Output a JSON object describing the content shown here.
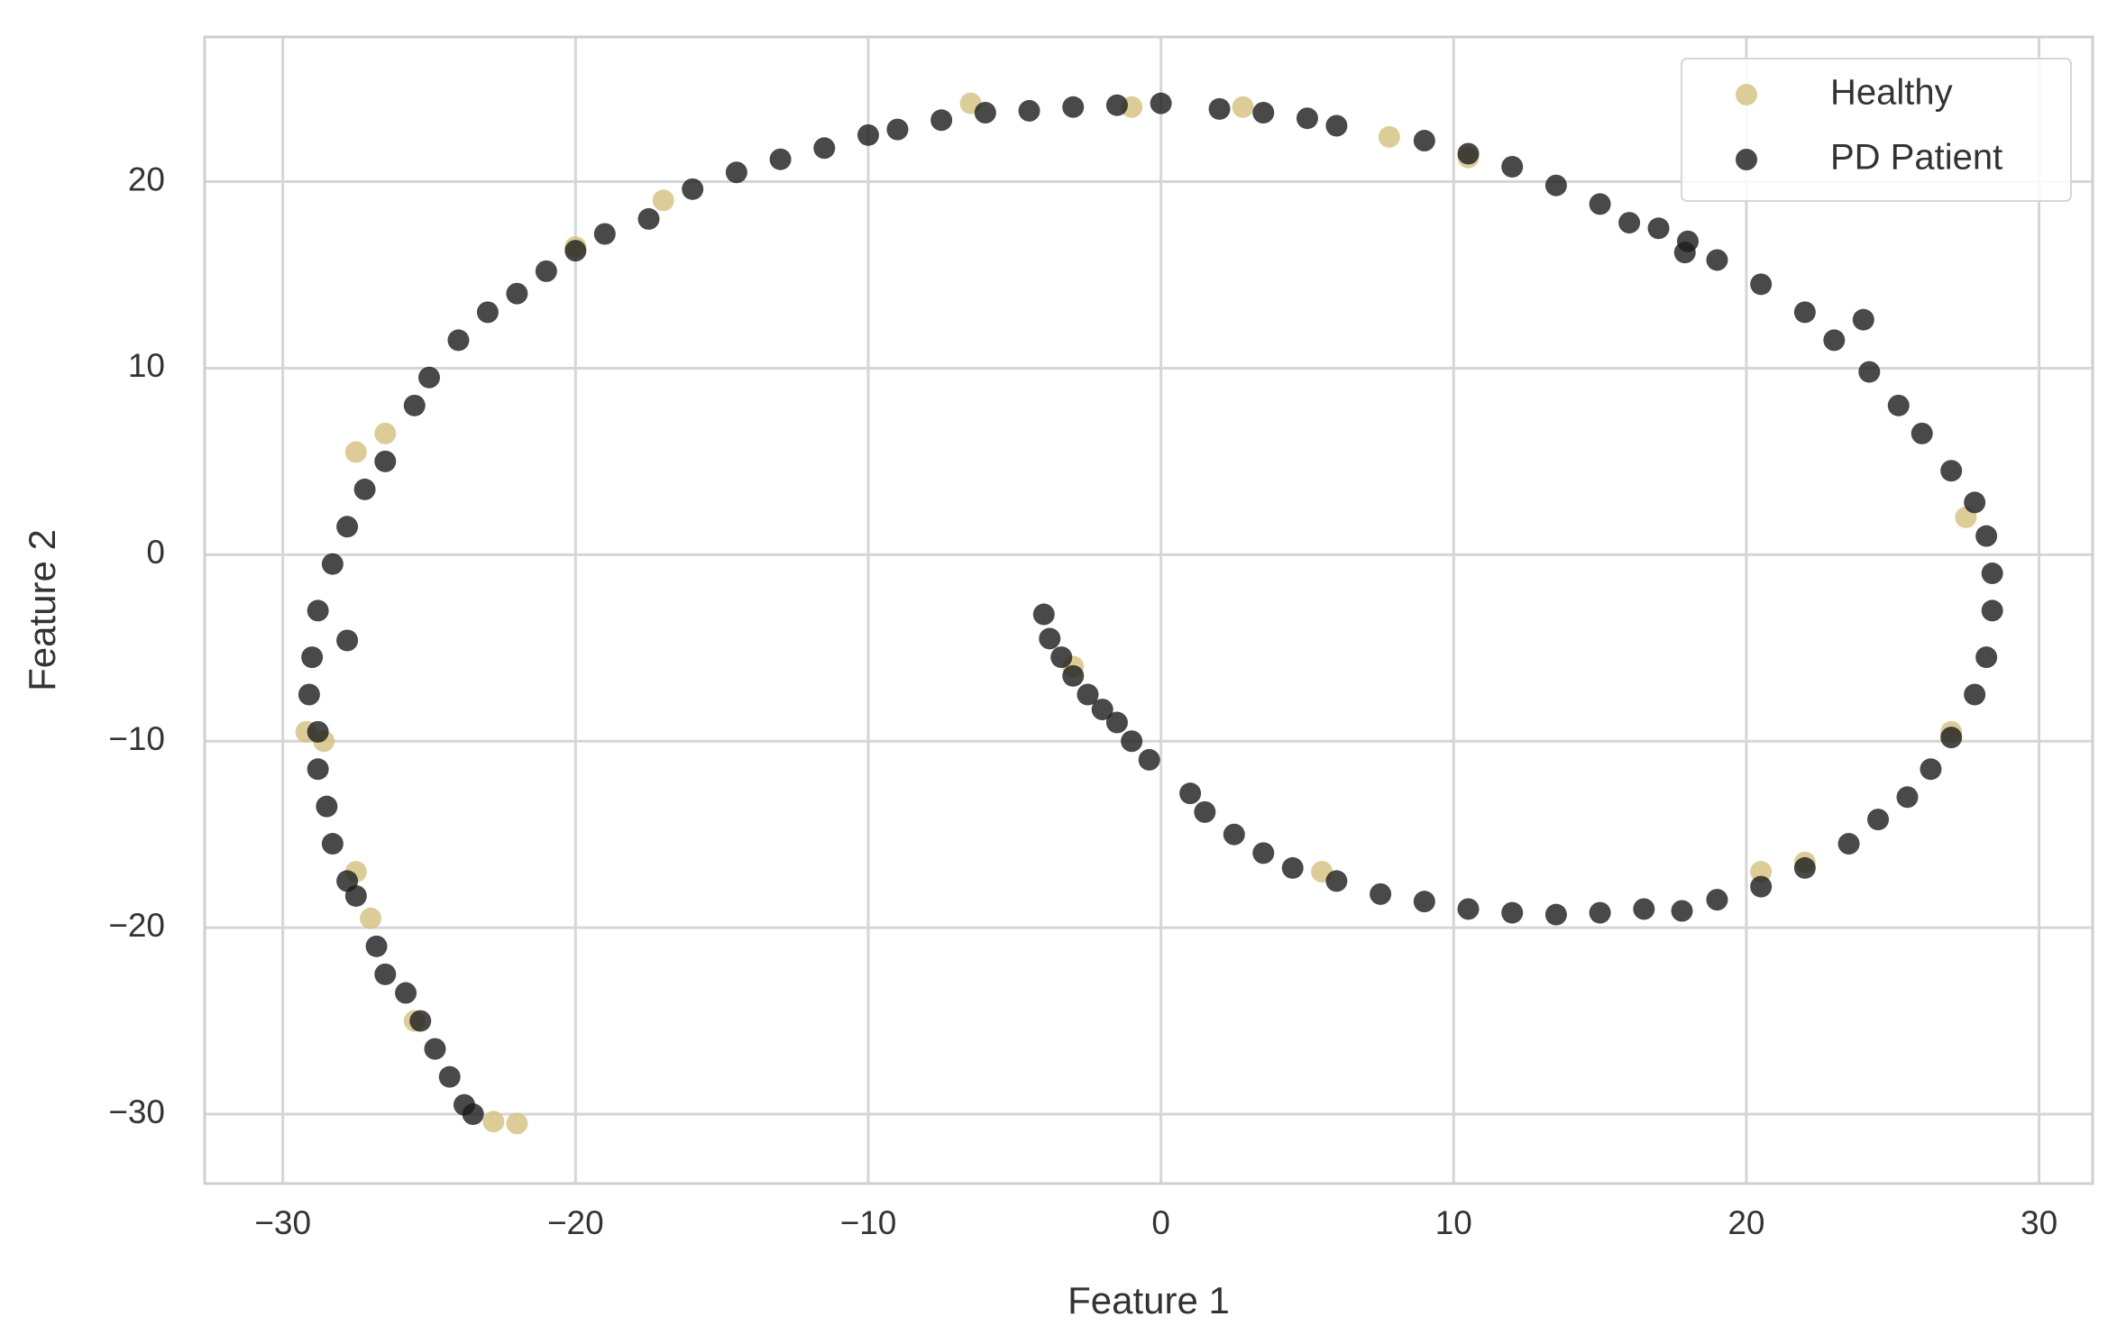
{
  "chart_data": {
    "type": "scatter",
    "xlabel": "Feature 1",
    "ylabel": "Feature 2",
    "xlim": [
      -32.67,
      31.83
    ],
    "ylim": [
      -33.72,
      27.76
    ],
    "xticks": [
      {
        "value": -30,
        "label": "−30"
      },
      {
        "value": -20,
        "label": "−20"
      },
      {
        "value": -10,
        "label": "−10"
      },
      0,
      10,
      20,
      30
    ],
    "yticks": [
      {
        "value": -30,
        "label": "−30"
      },
      {
        "value": -20,
        "label": "−20"
      },
      {
        "value": -10,
        "label": "−10"
      },
      0,
      10,
      20
    ],
    "grid": true,
    "legend_loc": "upper right",
    "series": [
      {
        "name": "Healthy",
        "color": "#d3c17e",
        "x": [
          -22,
          -22.8,
          -25.5,
          -27,
          -27.5,
          -28.6,
          -29.2,
          -26.5,
          -27.5,
          -20,
          -17,
          -6.5,
          -1,
          2.8,
          7.8,
          10.5,
          27.5,
          27,
          20.5,
          5.5,
          -3,
          22
        ],
        "y": [
          -30.5,
          -30.4,
          -25,
          -19.5,
          -17,
          -10,
          -9.5,
          6.5,
          5.5,
          16.5,
          19,
          24.2,
          24,
          24,
          22.4,
          21.3,
          2,
          -9.5,
          -17,
          -17,
          -6,
          -16.5
        ]
      },
      {
        "name": "PD Patient",
        "color": "#1c1c1c",
        "x": [
          -4,
          -3.8,
          -3.4,
          -3,
          -2.5,
          -2,
          -1.5,
          -1,
          -0.4,
          1,
          1.5,
          2.5,
          3.5,
          4.5,
          6,
          7.5,
          9,
          10.5,
          12,
          13.5,
          15,
          16.5,
          17.8,
          19,
          20.5,
          22,
          23.5,
          24.5,
          25.5,
          26.3,
          27,
          27.8,
          28.2,
          28.4,
          28.4,
          28.2,
          27.8,
          27,
          26,
          25.2,
          24.2,
          23,
          22,
          20.5,
          19,
          18,
          17,
          16,
          15,
          13.5,
          12,
          10.5,
          9,
          6,
          5,
          3.5,
          2,
          0,
          -1.5,
          -3,
          -4.5,
          -6,
          -7.5,
          -9,
          -10,
          -11.5,
          -13,
          -14.5,
          -16,
          -17.5,
          -19,
          -20,
          -21,
          -22,
          -23,
          -24,
          -25,
          -25.5,
          -26.5,
          -27.2,
          -27.8,
          -28.3,
          -28.8,
          -29,
          -29.1,
          -28.8,
          -28.8,
          -28.5,
          -28.3,
          -27.8,
          -27.5,
          -26.8,
          -26.5,
          -25.8,
          -25.3,
          -24.8,
          -24.3,
          -23.8,
          -23.5,
          -27.8,
          24,
          17.9
        ],
        "y": [
          -3.2,
          -4.5,
          -5.5,
          -6.5,
          -7.5,
          -8.3,
          -9,
          -10,
          -11,
          -12.8,
          -13.8,
          -15,
          -16,
          -16.8,
          -17.5,
          -18.2,
          -18.6,
          -19,
          -19.2,
          -19.3,
          -19.2,
          -19,
          -19.1,
          -18.5,
          -17.8,
          -16.8,
          -15.5,
          -14.2,
          -13,
          -11.5,
          -9.8,
          -7.5,
          -5.5,
          -3,
          -1,
          1,
          2.8,
          4.5,
          6.5,
          8,
          9.8,
          11.5,
          13,
          14.5,
          15.8,
          16.8,
          17.5,
          17.8,
          18.8,
          19.8,
          20.8,
          21.5,
          22.2,
          23,
          23.4,
          23.7,
          23.9,
          24.2,
          24.1,
          24,
          23.8,
          23.7,
          23.3,
          22.8,
          22.5,
          21.8,
          21.2,
          20.5,
          19.6,
          18,
          17.2,
          16.3,
          15.2,
          14,
          13,
          11.5,
          9.5,
          8,
          5,
          3.5,
          1.5,
          -0.5,
          -3,
          -5.5,
          -7.5,
          -9.5,
          -11.5,
          -13.5,
          -15.5,
          -17.5,
          -18.3,
          -21,
          -22.5,
          -23.5,
          -25,
          -26.5,
          -28,
          -29.5,
          -30,
          -4.6,
          12.6,
          16.2
        ]
      }
    ]
  }
}
